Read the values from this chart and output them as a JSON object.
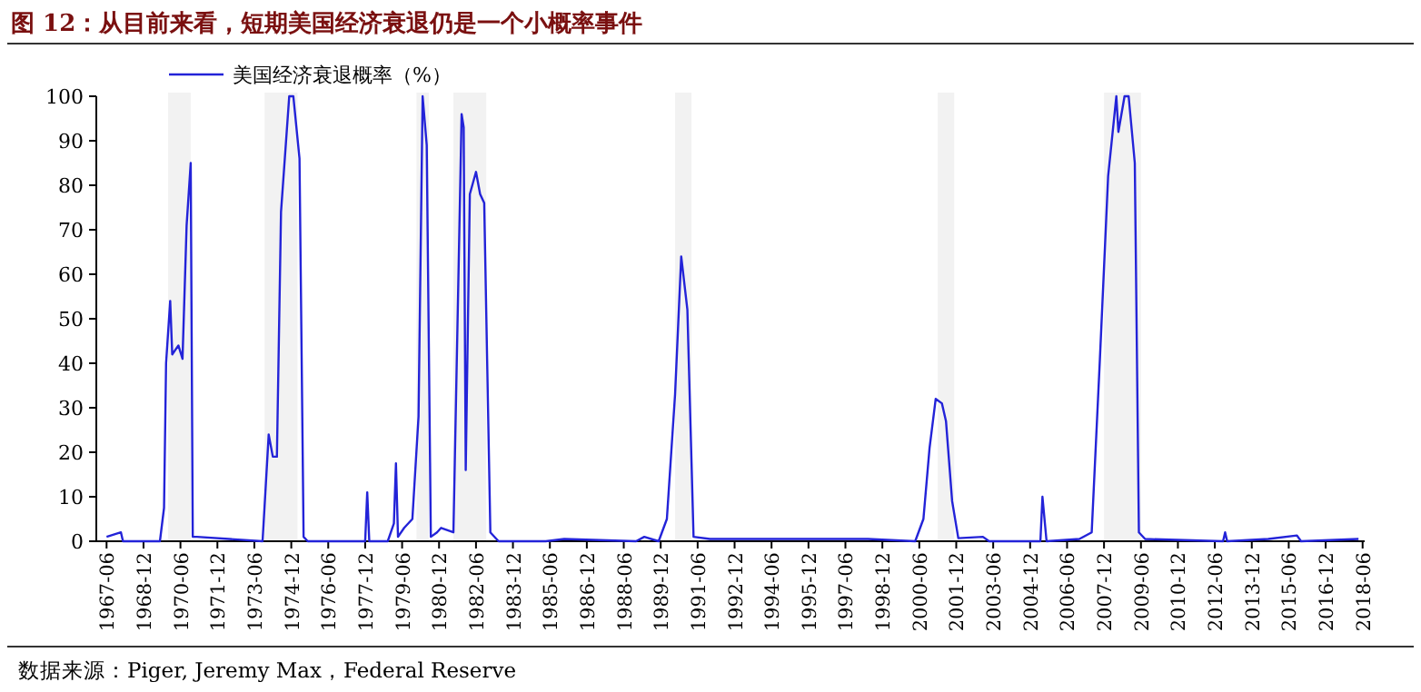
{
  "chart_data": {
    "type": "line",
    "title": "图 12：从目前来看，短期美国经济衰退仍是一个小概率事件",
    "annotations": [
      "数据来源：Piger, Jeremy Max，Federal Reserve"
    ],
    "series": [
      {
        "name": "美国经济衰退概率（%）",
        "color": "#2323d8",
        "x": [
          "1967-06",
          "1968-01",
          "1968-02",
          "1969-08",
          "1969-10",
          "1969-11",
          "1970-01",
          "1970-02",
          "1970-05",
          "1970-07",
          "1970-09",
          "1970-11",
          "1970-12",
          "1971-02",
          "1973-10",
          "1974-01",
          "1974-03",
          "1974-05",
          "1974-07",
          "1974-11",
          "1975-01",
          "1975-04",
          "1975-06",
          "1975-08",
          "1977-12",
          "1978-01",
          "1978-02",
          "1978-11",
          "1979-02",
          "1979-03",
          "1979-04",
          "1979-07",
          "1979-11",
          "1980-02",
          "1980-04",
          "1980-06",
          "1980-08",
          "1980-11",
          "1981-01",
          "1981-07",
          "1981-11",
          "1981-12",
          "1982-01",
          "1982-03",
          "1982-06",
          "1982-08",
          "1982-10",
          "1983-01",
          "1983-05",
          "1985-04",
          "1986-01",
          "1988-12",
          "1989-04",
          "1989-11",
          "1990-03",
          "1990-07",
          "1990-10",
          "1991-01",
          "1991-04",
          "1991-12",
          "1998-05",
          "2000-04",
          "2000-08",
          "2000-11",
          "2001-02",
          "2001-05",
          "2001-07",
          "2001-10",
          "2002-01",
          "2003-01",
          "2003-04",
          "2005-05",
          "2005-06",
          "2005-08",
          "2006-12",
          "2007-06",
          "2007-10",
          "2008-02",
          "2008-06",
          "2008-07",
          "2008-10",
          "2008-12",
          "2009-03",
          "2009-05",
          "2009-08",
          "2012-10",
          "2012-11",
          "2012-12",
          "2014-08",
          "2015-10",
          "2015-12",
          "2018-04"
        ],
        "values": [
          1,
          2,
          0,
          0,
          7.5,
          40,
          54,
          42,
          44,
          41,
          71,
          85,
          1,
          1,
          0,
          24,
          19,
          19,
          74,
          100,
          100,
          86,
          1,
          0,
          0,
          11,
          0,
          0,
          4,
          17.5,
          1,
          3,
          5,
          28,
          100,
          89,
          1,
          2,
          3,
          2,
          96,
          93,
          16,
          78,
          83,
          78,
          76,
          2,
          0,
          0,
          0.5,
          0,
          1,
          0,
          5,
          33,
          64,
          52,
          1,
          0.5,
          0.5,
          0,
          5,
          21,
          32,
          31,
          27,
          9,
          0.7,
          1,
          0,
          0,
          10,
          0,
          0.5,
          2,
          41,
          82,
          100,
          92,
          100,
          100,
          85,
          2,
          0.5,
          0,
          2,
          0,
          0.5,
          1.3,
          0,
          0.5
        ]
      }
    ],
    "xlim": [
      "1967-01",
      "2018-07"
    ],
    "xticks": [
      "1967-06",
      "1968-12",
      "1970-06",
      "1971-12",
      "1973-06",
      "1974-12",
      "1976-06",
      "1977-12",
      "1979-06",
      "1980-12",
      "1982-06",
      "1983-12",
      "1985-06",
      "1986-12",
      "1988-06",
      "1989-12",
      "1991-06",
      "1992-12",
      "1994-06",
      "1995-12",
      "1997-06",
      "1998-12",
      "2000-06",
      "2001-12",
      "2003-06",
      "2004-12",
      "2006-06",
      "2007-12",
      "2009-06",
      "2010-12",
      "2012-06",
      "2013-12",
      "2015-06",
      "2016-12",
      "2018-06"
    ],
    "ylim": [
      0,
      100
    ],
    "yticks": [
      0,
      10,
      20,
      30,
      40,
      50,
      60,
      70,
      80,
      90,
      100
    ],
    "bands": [
      {
        "axis": "x",
        "from": "1969-12",
        "to": "1970-11",
        "color": "#f2f2f2"
      },
      {
        "axis": "x",
        "from": "1973-11",
        "to": "1975-03",
        "color": "#f2f2f2"
      },
      {
        "axis": "x",
        "from": "1980-01",
        "to": "1980-07",
        "color": "#f2f2f2"
      },
      {
        "axis": "x",
        "from": "1981-07",
        "to": "1982-11",
        "color": "#f2f2f2"
      },
      {
        "axis": "x",
        "from": "1990-07",
        "to": "1991-03",
        "color": "#f2f2f2"
      },
      {
        "axis": "x",
        "from": "2001-03",
        "to": "2001-11",
        "color": "#f2f2f2"
      },
      {
        "axis": "x",
        "from": "2007-12",
        "to": "2009-06",
        "color": "#f2f2f2"
      }
    ],
    "legend": "top left",
    "grid": false
  }
}
